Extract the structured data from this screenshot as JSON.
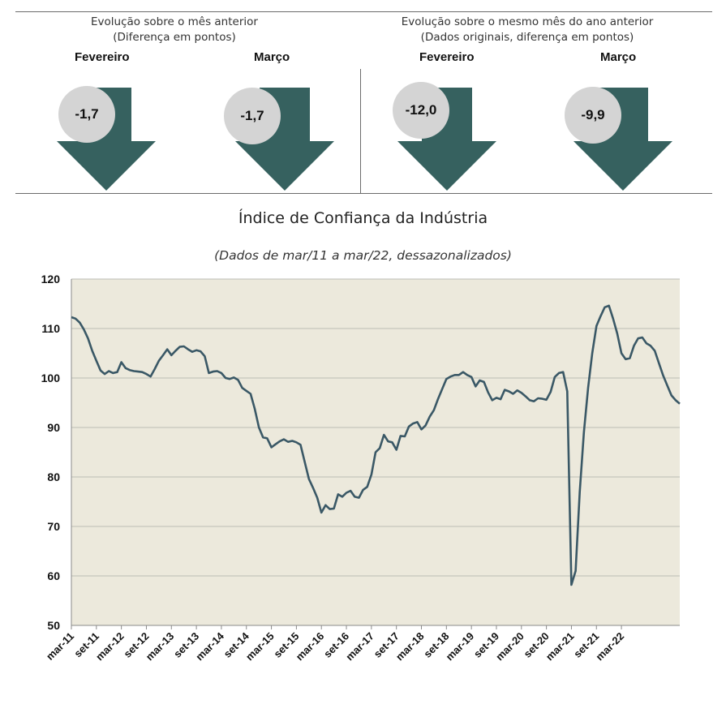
{
  "summary": {
    "left": {
      "title_line1": "Evolução sobre o mês anterior",
      "title_line2": "(Diferença em pontos)",
      "items": [
        {
          "month": "Fevereiro",
          "value": "-1,7"
        },
        {
          "month": "Março",
          "value": "-1,7"
        }
      ]
    },
    "right": {
      "title_line1": "Evolução sobre o mesmo mês do ano anterior",
      "title_line2": "(Dados originais, diferença em pontos)",
      "items": [
        {
          "month": "Fevereiro",
          "value": "-12,0"
        },
        {
          "month": "Março",
          "value": "-9,9"
        }
      ]
    },
    "arrow_icon": "down-arrow-icon",
    "arrow_color": "#36615f",
    "circle_color": "#d4d4d4"
  },
  "chart_data": {
    "type": "line",
    "title": "Índice de Confiança da Indústria",
    "subtitle": "(Dados de mar/11 a mar/22, dessazonalizados)",
    "xlabel": "",
    "ylabel": "",
    "ylim": [
      50,
      120
    ],
    "yticks": [
      50,
      60,
      70,
      80,
      90,
      100,
      110,
      120
    ],
    "tick_labels": [
      "mar-11",
      "set-11",
      "mar-12",
      "set-12",
      "mar-13",
      "set-13",
      "mar-14",
      "set-14",
      "mar-15",
      "set-15",
      "mar-16",
      "set-16",
      "mar-17",
      "set-17",
      "mar-18",
      "set-18",
      "mar-19",
      "set-19",
      "mar-20",
      "set-20",
      "mar-21",
      "set-21",
      "mar-22"
    ],
    "grid": true,
    "plot_background": "#ece9dc",
    "line_color": "#3a5866",
    "series": [
      {
        "values": [
          112.3,
          112.0,
          111.2,
          109.8,
          108.0,
          105.5,
          103.5,
          101.5,
          100.8,
          101.4,
          101.0,
          101.2,
          103.2,
          102.0,
          101.6,
          101.4,
          101.3,
          101.2,
          100.8,
          100.3,
          101.8,
          103.5,
          104.6,
          105.8,
          104.6,
          105.5,
          106.3,
          106.4,
          105.8,
          105.3,
          105.6,
          105.4,
          104.4,
          101.0,
          101.3,
          101.4,
          101.0,
          100.0,
          99.8,
          100.1,
          99.6,
          98.0,
          97.4,
          96.8,
          93.8,
          90.0,
          88.0,
          87.8,
          86.0,
          86.6,
          87.2,
          87.6,
          87.1,
          87.3,
          87.0,
          86.5,
          83.0,
          79.6,
          77.8,
          75.8,
          72.8,
          74.3,
          73.5,
          73.6,
          76.5,
          76.0,
          76.8,
          77.2,
          76.0,
          75.8,
          77.4,
          78.0,
          80.5,
          85.0,
          85.8,
          88.5,
          87.2,
          87.0,
          85.5,
          88.3,
          88.2,
          90.2,
          90.8,
          91.1,
          89.6,
          90.4,
          92.2,
          93.5,
          95.8,
          97.8,
          99.8,
          100.3,
          100.6,
          100.6,
          101.2,
          100.6,
          100.2,
          98.3,
          99.5,
          99.2,
          97.1,
          95.5,
          96.0,
          95.7,
          97.6,
          97.3,
          96.8,
          97.5,
          97.0,
          96.3,
          95.5,
          95.3,
          95.9,
          95.8,
          95.6,
          97.2,
          100.2,
          101.0,
          101.2,
          97.3,
          58.2,
          61.0,
          77.0,
          89.0,
          98.0,
          105.0,
          110.5,
          112.5,
          114.3,
          114.6,
          112.0,
          109.0,
          105.0,
          103.8,
          104.0,
          106.5,
          108.0,
          108.2,
          107.0,
          106.5,
          105.5,
          103.0,
          100.5,
          98.5,
          96.5,
          95.5,
          94.8
        ]
      }
    ]
  }
}
